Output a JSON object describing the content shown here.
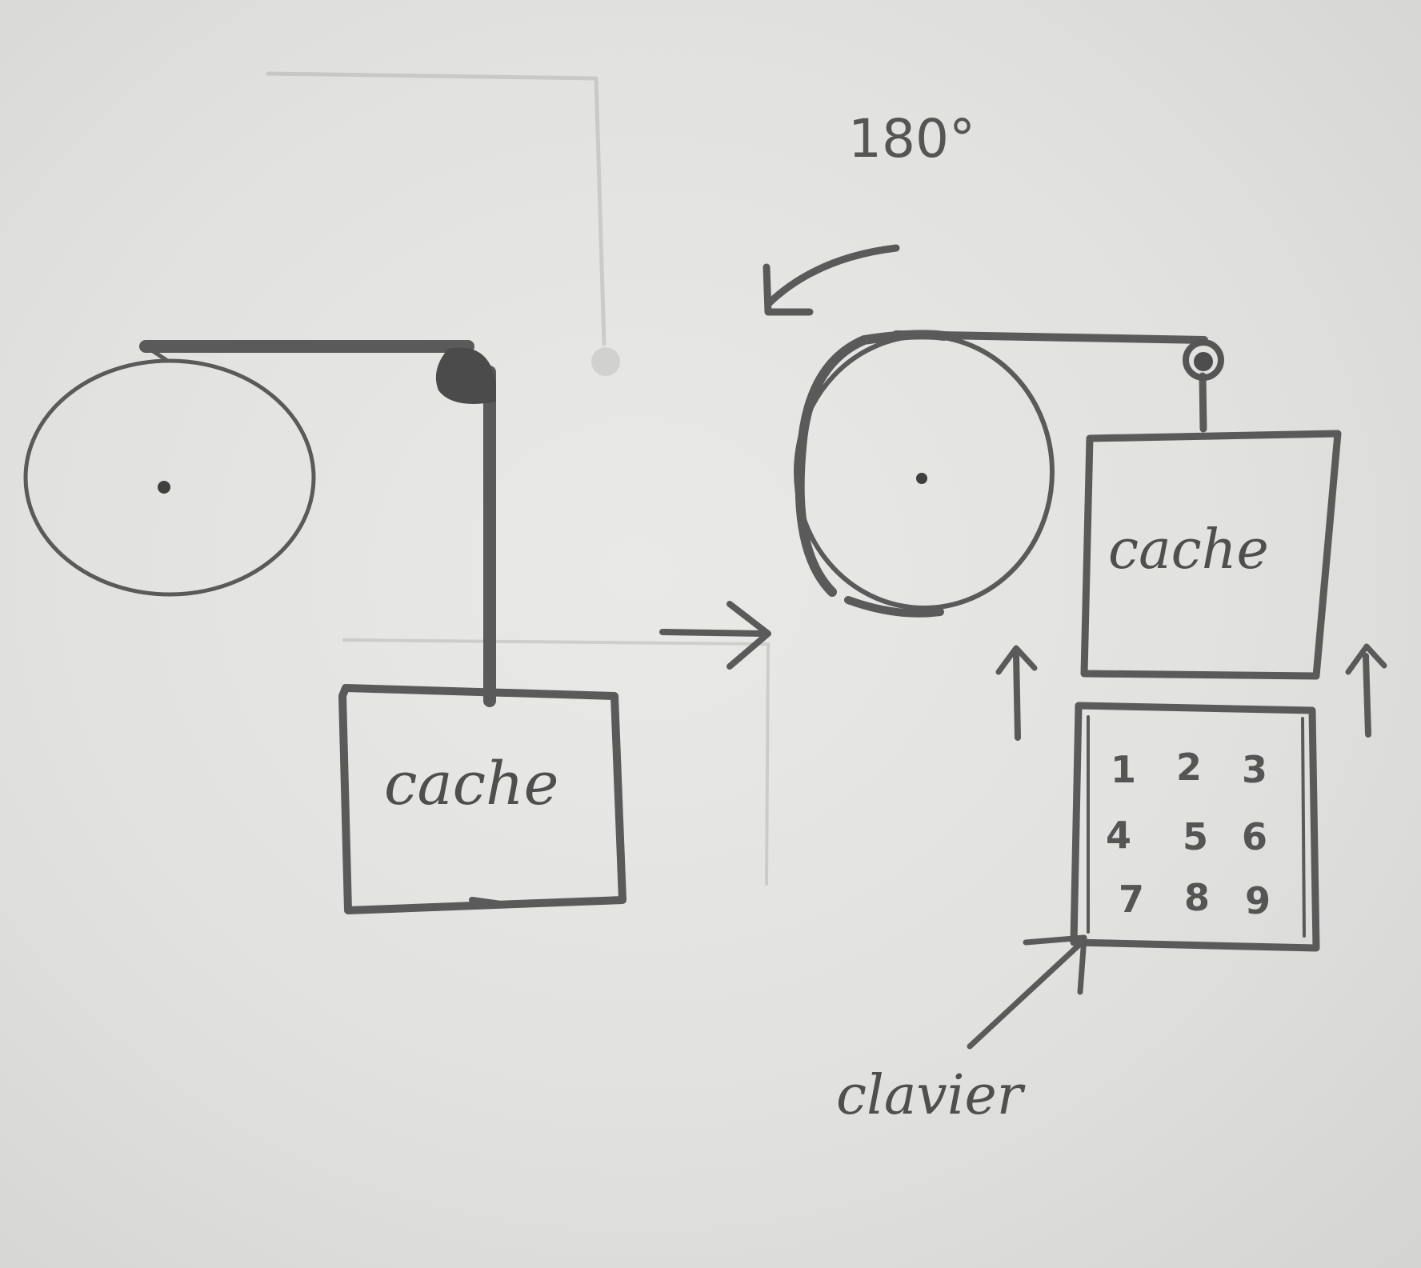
{
  "left_state": {
    "box_label": "cache"
  },
  "right_state": {
    "rotation_label": "180°",
    "box_label": "cache",
    "keypad_keys": [
      "1",
      "2",
      "3",
      "4",
      "5",
      "6",
      "7",
      "8",
      "9"
    ],
    "keypad_callout": "clavier"
  }
}
